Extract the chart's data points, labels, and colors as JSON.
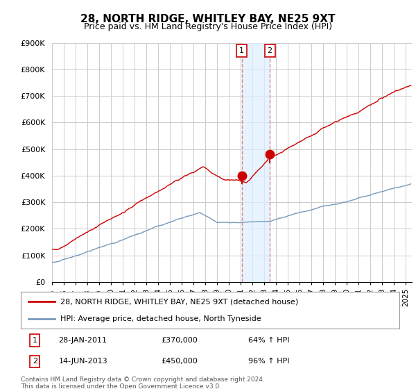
{
  "title": "28, NORTH RIDGE, WHITLEY BAY, NE25 9XT",
  "subtitle": "Price paid vs. HM Land Registry's House Price Index (HPI)",
  "ylabel_ticks": [
    "£0",
    "£100K",
    "£200K",
    "£300K",
    "£400K",
    "£500K",
    "£600K",
    "£700K",
    "£800K",
    "£900K"
  ],
  "ylim": [
    0,
    900000
  ],
  "xlim_start": 1995.0,
  "xlim_end": 2025.5,
  "red_line_color": "#cc0000",
  "blue_line_color": "#7799bb",
  "annotation_shade_color": "#ddeeff",
  "annotation_line_color": "#dd8888",
  "transaction_1_x": 2011.08,
  "transaction_1_y": 370000,
  "transaction_2_x": 2013.46,
  "transaction_2_y": 450000,
  "legend_entry_1": "28, NORTH RIDGE, WHITLEY BAY, NE25 9XT (detached house)",
  "legend_entry_2": "HPI: Average price, detached house, North Tyneside",
  "table_row_1": [
    "1",
    "28-JAN-2011",
    "£370,000",
    "64% ↑ HPI"
  ],
  "table_row_2": [
    "2",
    "14-JUN-2013",
    "£450,000",
    "96% ↑ HPI"
  ],
  "footer": "Contains HM Land Registry data © Crown copyright and database right 2024.\nThis data is licensed under the Open Government Licence v3.0.",
  "background_color": "#ffffff",
  "grid_color": "#cccccc"
}
